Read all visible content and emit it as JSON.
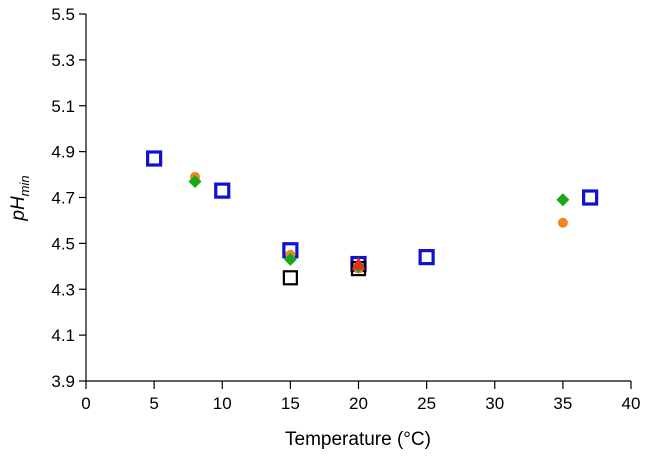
{
  "chart_data": {
    "type": "scatter",
    "title": "",
    "xlabel": "Temperature (°C)",
    "ylabel_main": "pH",
    "ylabel_sub": "min",
    "xlim": [
      0,
      40
    ],
    "ylim": [
      3.9,
      5.5
    ],
    "x_ticks": [
      "0",
      "5",
      "10",
      "15",
      "20",
      "25",
      "30",
      "35",
      "40"
    ],
    "y_ticks": [
      "3.9",
      "4.1",
      "4.3",
      "4.5",
      "4.7",
      "4.9",
      "5.1",
      "5.3",
      "5.5"
    ],
    "grid": false,
    "legend": "none",
    "series": [
      {
        "marker": "square-open",
        "color": "#1010d0",
        "points": [
          {
            "x": 5,
            "y": 4.87
          },
          {
            "x": 10,
            "y": 4.73
          },
          {
            "x": 15,
            "y": 4.47
          },
          {
            "x": 20,
            "y": 4.41
          },
          {
            "x": 25,
            "y": 4.44
          },
          {
            "x": 37,
            "y": 4.7
          }
        ]
      },
      {
        "marker": "circle",
        "color": "#f0861e",
        "points": [
          {
            "x": 8,
            "y": 4.79
          },
          {
            "x": 15,
            "y": 4.45
          },
          {
            "x": 20,
            "y": 4.39
          },
          {
            "x": 35,
            "y": 4.59
          }
        ]
      },
      {
        "marker": "diamond",
        "color": "#1aa81a",
        "points": [
          {
            "x": 8,
            "y": 4.77
          },
          {
            "x": 15,
            "y": 4.43
          },
          {
            "x": 20,
            "y": 4.4
          },
          {
            "x": 35,
            "y": 4.69
          }
        ]
      },
      {
        "marker": "square-open",
        "color": "#000000",
        "points": [
          {
            "x": 15,
            "y": 4.35
          },
          {
            "x": 20,
            "y": 4.39
          }
        ]
      },
      {
        "marker": "triangle",
        "color": "#e03020",
        "points": [
          {
            "x": 20,
            "y": 4.41
          }
        ]
      }
    ]
  }
}
